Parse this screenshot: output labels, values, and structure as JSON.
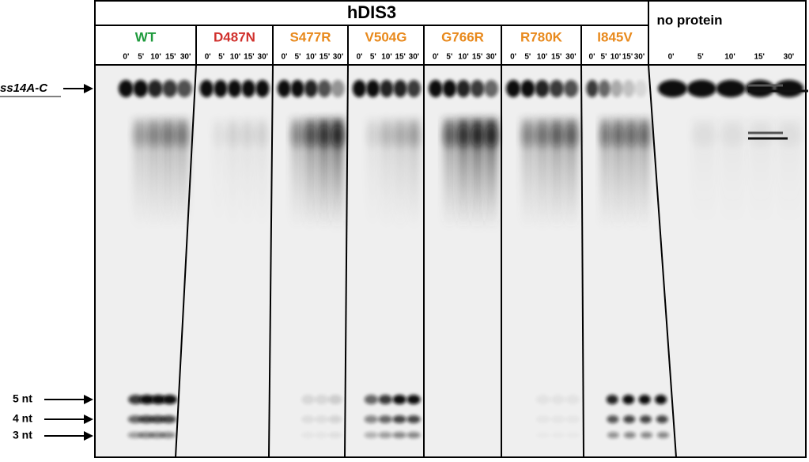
{
  "header": {
    "title": "hDIS3"
  },
  "panels": [
    {
      "name": "WT",
      "color": "#1e9a3c",
      "times": [
        "0'",
        "5'",
        "10'",
        "15'",
        "30'"
      ]
    },
    {
      "name": "D487N",
      "color": "#d0312d",
      "times": [
        "0'",
        "5'",
        "10'",
        "15'",
        "30'"
      ]
    },
    {
      "name": "S477R",
      "color": "#e8891c",
      "times": [
        "0'",
        "5'",
        "10'",
        "15'",
        "30'"
      ]
    },
    {
      "name": "V504G",
      "color": "#e8891c",
      "times": [
        "0'",
        "5'",
        "10'",
        "15'",
        "30'"
      ]
    },
    {
      "name": "G766R",
      "color": "#e8891c",
      "times": [
        "0'",
        "5'",
        "10'",
        "15'",
        "30'"
      ]
    },
    {
      "name": "R780K",
      "color": "#e8891c",
      "times": [
        "0'",
        "5'",
        "10'",
        "15'",
        "30'"
      ]
    },
    {
      "name": "I845V",
      "color": "#e8891c",
      "times": [
        "0'",
        "5'",
        "10'",
        "15'",
        "30'"
      ]
    }
  ],
  "control": {
    "name": "no protein",
    "times": [
      "0'",
      "5'",
      "10'",
      "15'",
      "30'"
    ]
  },
  "markers": {
    "substrate": "ss14A-C",
    "products": [
      "5 nt",
      "4 nt",
      "3 nt"
    ]
  }
}
